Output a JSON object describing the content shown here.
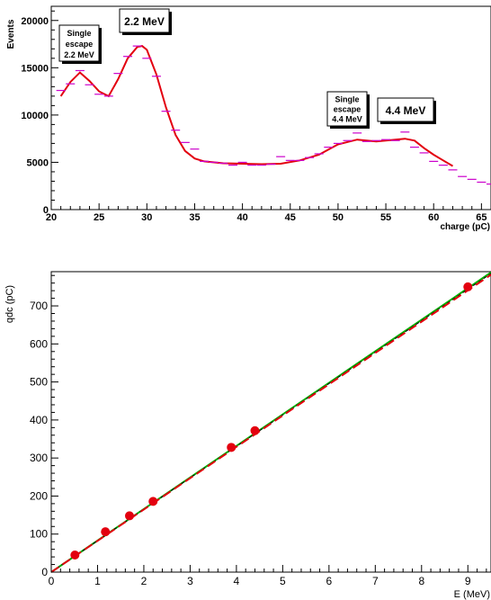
{
  "colors": {
    "fit_line": "#e3000f",
    "data_marker": "#cc00cc",
    "calib_points": "#e3000f",
    "calib_fit_red": "#e3000f",
    "calib_fit_green": "#00b000",
    "calib_fit_dashed": "#000000"
  },
  "chart_data": [
    {
      "type": "line",
      "title": "",
      "xlabel": "charge (pC)",
      "ylabel": "Events",
      "xlim": [
        20,
        66
      ],
      "ylim": [
        0,
        21500
      ],
      "xticks": [
        "20",
        "25",
        "30",
        "35",
        "40",
        "45",
        "50",
        "55",
        "60",
        "65"
      ],
      "yticks": [
        "0",
        "5000",
        "10000",
        "15000",
        "20000"
      ],
      "grid": false,
      "series": [
        {
          "x": [
            21,
            22,
            23,
            24,
            25,
            26,
            27,
            28,
            29,
            30,
            31,
            32,
            33,
            34,
            35,
            36,
            37,
            38,
            39,
            40,
            41,
            42,
            43,
            44,
            45,
            46,
            47,
            48,
            49,
            50,
            51,
            52,
            53,
            54,
            55,
            56,
            57,
            58,
            59,
            60,
            61,
            62,
            63,
            64,
            65,
            66
          ],
          "y": [
            12600,
            13300,
            14700,
            13200,
            12200,
            12000,
            14400,
            16200,
            17300,
            16000,
            14100,
            10400,
            8400,
            7100,
            6400,
            5100,
            5000,
            4900,
            4700,
            5000,
            4700,
            4700,
            4800,
            5600,
            5200,
            5200,
            5500,
            5900,
            6600,
            7000,
            7300,
            8100,
            7200,
            7300,
            7400,
            7300,
            8200,
            6600,
            6000,
            5100,
            4700,
            4200,
            3500,
            3200,
            2900,
            2700
          ]
        },
        {
          "x": [
            21,
            22,
            23,
            24,
            25,
            26,
            27,
            28,
            29,
            29.5,
            30,
            31,
            32,
            33,
            34,
            35,
            36,
            38,
            40,
            42,
            44,
            46,
            48,
            50,
            52,
            54,
            56,
            57,
            58,
            59,
            60,
            61,
            62
          ],
          "y": [
            12000,
            13500,
            14500,
            13600,
            12500,
            12000,
            13800,
            16000,
            17200,
            17300,
            16900,
            14300,
            10800,
            7900,
            6200,
            5400,
            5100,
            4900,
            4850,
            4800,
            4850,
            5200,
            5800,
            6900,
            7400,
            7200,
            7400,
            7500,
            7300,
            6500,
            5800,
            5200,
            4600
          ]
        }
      ],
      "annotations": [
        {
          "lines": [
            "Single",
            "escape",
            "2.2 MeV"
          ]
        },
        {
          "lines": [
            "2.2 MeV"
          ]
        },
        {
          "lines": [
            "Single",
            "escape",
            "4.4 MeV"
          ]
        },
        {
          "lines": [
            "4.4 MeV"
          ]
        }
      ]
    },
    {
      "type": "scatter",
      "title": "",
      "xlabel": "E (MeV)",
      "ylabel": "qdc (pC)",
      "xlim": [
        0,
        9.5
      ],
      "ylim": [
        0,
        790
      ],
      "xticks": [
        "0",
        "1",
        "2",
        "3",
        "4",
        "5",
        "6",
        "7",
        "8",
        "9"
      ],
      "yticks": [
        "0",
        "100",
        "200",
        "300",
        "400",
        "500",
        "600",
        "700"
      ],
      "grid": false,
      "series": [
        {
          "x": [
            0.511,
            1.17,
            1.69,
            2.2,
            3.89,
            4.4,
            9.0
          ],
          "y": [
            45,
            106,
            148,
            186,
            328,
            372,
            750
          ]
        }
      ],
      "fit_lines": [
        {
          "x": [
            0,
            9.5
          ],
          "y": [
            0,
            788
          ]
        },
        {
          "x": [
            0,
            9.5
          ],
          "y": [
            0,
            785
          ]
        },
        {
          "x": [
            0,
            9.5
          ],
          "y": [
            0,
            782
          ]
        }
      ]
    }
  ]
}
